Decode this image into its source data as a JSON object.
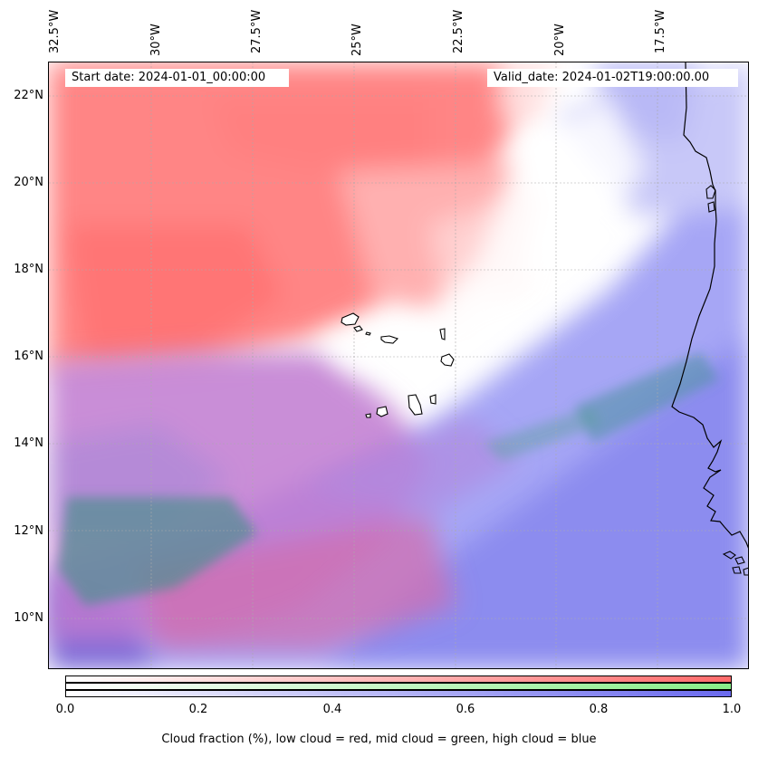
{
  "map": {
    "start_date": "Start date: 2024-01-01_00:00:00",
    "valid_date": "Valid_date: 2024-01-02T19:00:00.00",
    "longitude_labels": [
      "32.5°W",
      "30°W",
      "27.5°W",
      "25°W",
      "22.5°W",
      "20°W",
      "17.5°W"
    ],
    "latitude_labels": [
      "22°N",
      "20°N",
      "18°N",
      "16°N",
      "14°N",
      "12°N",
      "10°N"
    ],
    "colors": {
      "low_cloud": "#ff6b6b",
      "mid_cloud": "#4fbf4f",
      "high_cloud": "#5a5aee",
      "coastline": "#000000",
      "gridline": "#aaaaaa"
    }
  },
  "colorbar": {
    "tick_labels": [
      "0.0",
      "0.2",
      "0.4",
      "0.6",
      "0.8",
      "1.0"
    ],
    "caption": "Cloud fraction (%), low cloud = red, mid cloud = green, high cloud = blue",
    "ramps": [
      {
        "name": "low cloud",
        "color": "#ff6b6b"
      },
      {
        "name": "mid cloud",
        "color": "#88ee88"
      },
      {
        "name": "high cloud",
        "color": "#6a6aee"
      }
    ]
  }
}
